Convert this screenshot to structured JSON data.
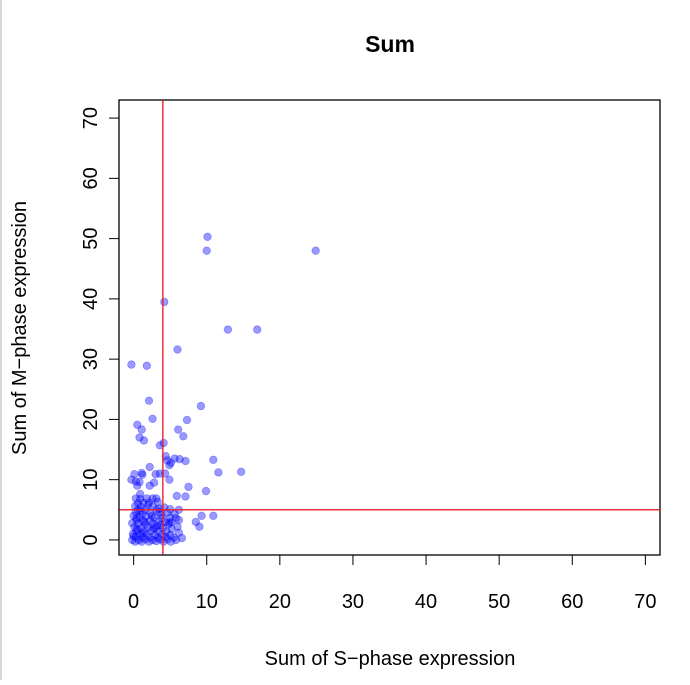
{
  "chart_data": {
    "type": "scatter",
    "title": "Sum",
    "xlabel": "Sum of S−phase expression",
    "ylabel": "Sum of M−phase expression",
    "xlim": [
      -2,
      72
    ],
    "ylim": [
      -2.5,
      73
    ],
    "xticks": [
      0,
      10,
      20,
      30,
      40,
      50,
      60,
      70
    ],
    "yticks": [
      0,
      10,
      20,
      30,
      40,
      50,
      60,
      70
    ],
    "grid": false,
    "legend": "none",
    "point_color": "#0000ff",
    "point_opacity": 0.4,
    "reference_line_color": "#e8232c",
    "reference_lines": {
      "vertical_x": 4,
      "horizontal_y": 5
    },
    "points": [
      [
        10.1,
        50.3
      ],
      [
        10.0,
        48.0
      ],
      [
        24.9,
        48.0
      ],
      [
        4.2,
        39.5
      ],
      [
        12.9,
        34.9
      ],
      [
        16.9,
        34.9
      ],
      [
        6.0,
        31.6
      ],
      [
        -0.3,
        29.1
      ],
      [
        1.8,
        28.9
      ],
      [
        2.1,
        23.1
      ],
      [
        9.2,
        22.2
      ],
      [
        2.6,
        20.1
      ],
      [
        7.3,
        19.9
      ],
      [
        0.5,
        19.1
      ],
      [
        1.1,
        18.3
      ],
      [
        6.1,
        18.3
      ],
      [
        6.8,
        17.2
      ],
      [
        0.8,
        17.0
      ],
      [
        1.4,
        16.5
      ],
      [
        4.1,
        16.1
      ],
      [
        3.6,
        15.7
      ],
      [
        4.4,
        13.9
      ],
      [
        5.6,
        13.5
      ],
      [
        4.6,
        13.2
      ],
      [
        6.3,
        13.4
      ],
      [
        7.1,
        13.1
      ],
      [
        10.9,
        13.3
      ],
      [
        5.1,
        12.8
      ],
      [
        4.9,
        12.4
      ],
      [
        2.2,
        12.1
      ],
      [
        11.6,
        11.2
      ],
      [
        14.7,
        11.3
      ],
      [
        0.1,
        10.9
      ],
      [
        1.1,
        11.1
      ],
      [
        1.2,
        10.8
      ],
      [
        3.0,
        10.9
      ],
      [
        3.6,
        11.0
      ],
      [
        4.3,
        11.0
      ],
      [
        -0.3,
        10.0
      ],
      [
        0.3,
        9.7
      ],
      [
        0.8,
        9.6
      ],
      [
        2.8,
        9.5
      ],
      [
        4.9,
        10.0
      ],
      [
        0.5,
        9.0
      ],
      [
        2.2,
        9.0
      ],
      [
        7.5,
        8.8
      ],
      [
        9.9,
        8.1
      ],
      [
        0.9,
        7.6
      ],
      [
        5.9,
        7.3
      ],
      [
        7.1,
        7.2
      ],
      [
        0.3,
        6.9
      ],
      [
        0.9,
        6.8
      ],
      [
        1.8,
        6.9
      ],
      [
        2.6,
        6.9
      ],
      [
        3.1,
        6.9
      ],
      [
        0.6,
        6.1
      ],
      [
        1.3,
        6.2
      ],
      [
        2.1,
        6.2
      ],
      [
        3.3,
        6.3
      ],
      [
        0.2,
        5.6
      ],
      [
        1.0,
        5.5
      ],
      [
        2.6,
        5.6
      ],
      [
        4.2,
        5.4
      ],
      [
        0.6,
        5.0
      ],
      [
        1.6,
        5.0
      ],
      [
        3.1,
        5.0
      ],
      [
        5.0,
        5.1
      ],
      [
        6.2,
        5.0
      ],
      [
        0.3,
        4.6
      ],
      [
        1.2,
        4.4
      ],
      [
        2.3,
        4.5
      ],
      [
        3.5,
        4.6
      ],
      [
        4.6,
        4.5
      ],
      [
        5.6,
        4.3
      ],
      [
        9.3,
        4.0
      ],
      [
        10.9,
        4.0
      ],
      [
        0.0,
        4.0
      ],
      [
        0.8,
        3.8
      ],
      [
        1.7,
        3.9
      ],
      [
        2.8,
        3.7
      ],
      [
        3.9,
        3.6
      ],
      [
        5.0,
        3.7
      ],
      [
        0.4,
        3.3
      ],
      [
        1.3,
        3.2
      ],
      [
        2.3,
        3.2
      ],
      [
        3.4,
        3.1
      ],
      [
        4.3,
        3.0
      ],
      [
        5.2,
        3.0
      ],
      [
        6.2,
        3.3
      ],
      [
        8.5,
        3.0
      ],
      [
        -0.2,
        2.8
      ],
      [
        0.6,
        2.7
      ],
      [
        1.6,
        2.6
      ],
      [
        2.6,
        2.7
      ],
      [
        3.7,
        2.5
      ],
      [
        4.8,
        2.6
      ],
      [
        6.0,
        2.2
      ],
      [
        9.0,
        2.2
      ],
      [
        0.1,
        2.1
      ],
      [
        1.0,
        2.0
      ],
      [
        2.0,
        2.1
      ],
      [
        3.0,
        2.0
      ],
      [
        4.0,
        2.0
      ],
      [
        5.2,
        1.8
      ],
      [
        0.4,
        1.5
      ],
      [
        1.4,
        1.4
      ],
      [
        2.4,
        1.5
      ],
      [
        3.4,
        1.4
      ],
      [
        4.5,
        1.4
      ],
      [
        6.2,
        1.2
      ],
      [
        -0.1,
        1.0
      ],
      [
        0.8,
        0.9
      ],
      [
        1.8,
        0.9
      ],
      [
        2.9,
        0.8
      ],
      [
        3.9,
        0.9
      ],
      [
        5.0,
        0.8
      ],
      [
        0.3,
        0.5
      ],
      [
        1.2,
        0.4
      ],
      [
        2.2,
        0.4
      ],
      [
        3.3,
        0.4
      ],
      [
        4.4,
        0.5
      ],
      [
        5.5,
        0.4
      ],
      [
        -0.2,
        0.0
      ],
      [
        0.7,
        0.0
      ],
      [
        1.6,
        0.1
      ],
      [
        2.6,
        0.0
      ],
      [
        3.6,
        0.1
      ],
      [
        4.6,
        0.1
      ],
      [
        5.8,
        0.0
      ],
      [
        6.6,
        0.3
      ],
      [
        0.2,
        -0.3
      ],
      [
        1.1,
        -0.3
      ],
      [
        2.1,
        -0.3
      ],
      [
        3.1,
        -0.2
      ],
      [
        4.1,
        -0.3
      ],
      [
        5.1,
        -0.3
      ],
      [
        0.0,
        0.6
      ],
      [
        0.5,
        1.8
      ],
      [
        1.5,
        3.0
      ],
      [
        2.5,
        4.0
      ],
      [
        3.5,
        5.2
      ],
      [
        0.9,
        4.8
      ],
      [
        2.0,
        5.8
      ],
      [
        3.8,
        4.2
      ],
      [
        4.9,
        2.9
      ],
      [
        5.8,
        3.6
      ],
      [
        1.2,
        1.1
      ],
      [
        2.7,
        1.9
      ],
      [
        3.2,
        2.4
      ],
      [
        0.4,
        3.6
      ]
    ]
  }
}
